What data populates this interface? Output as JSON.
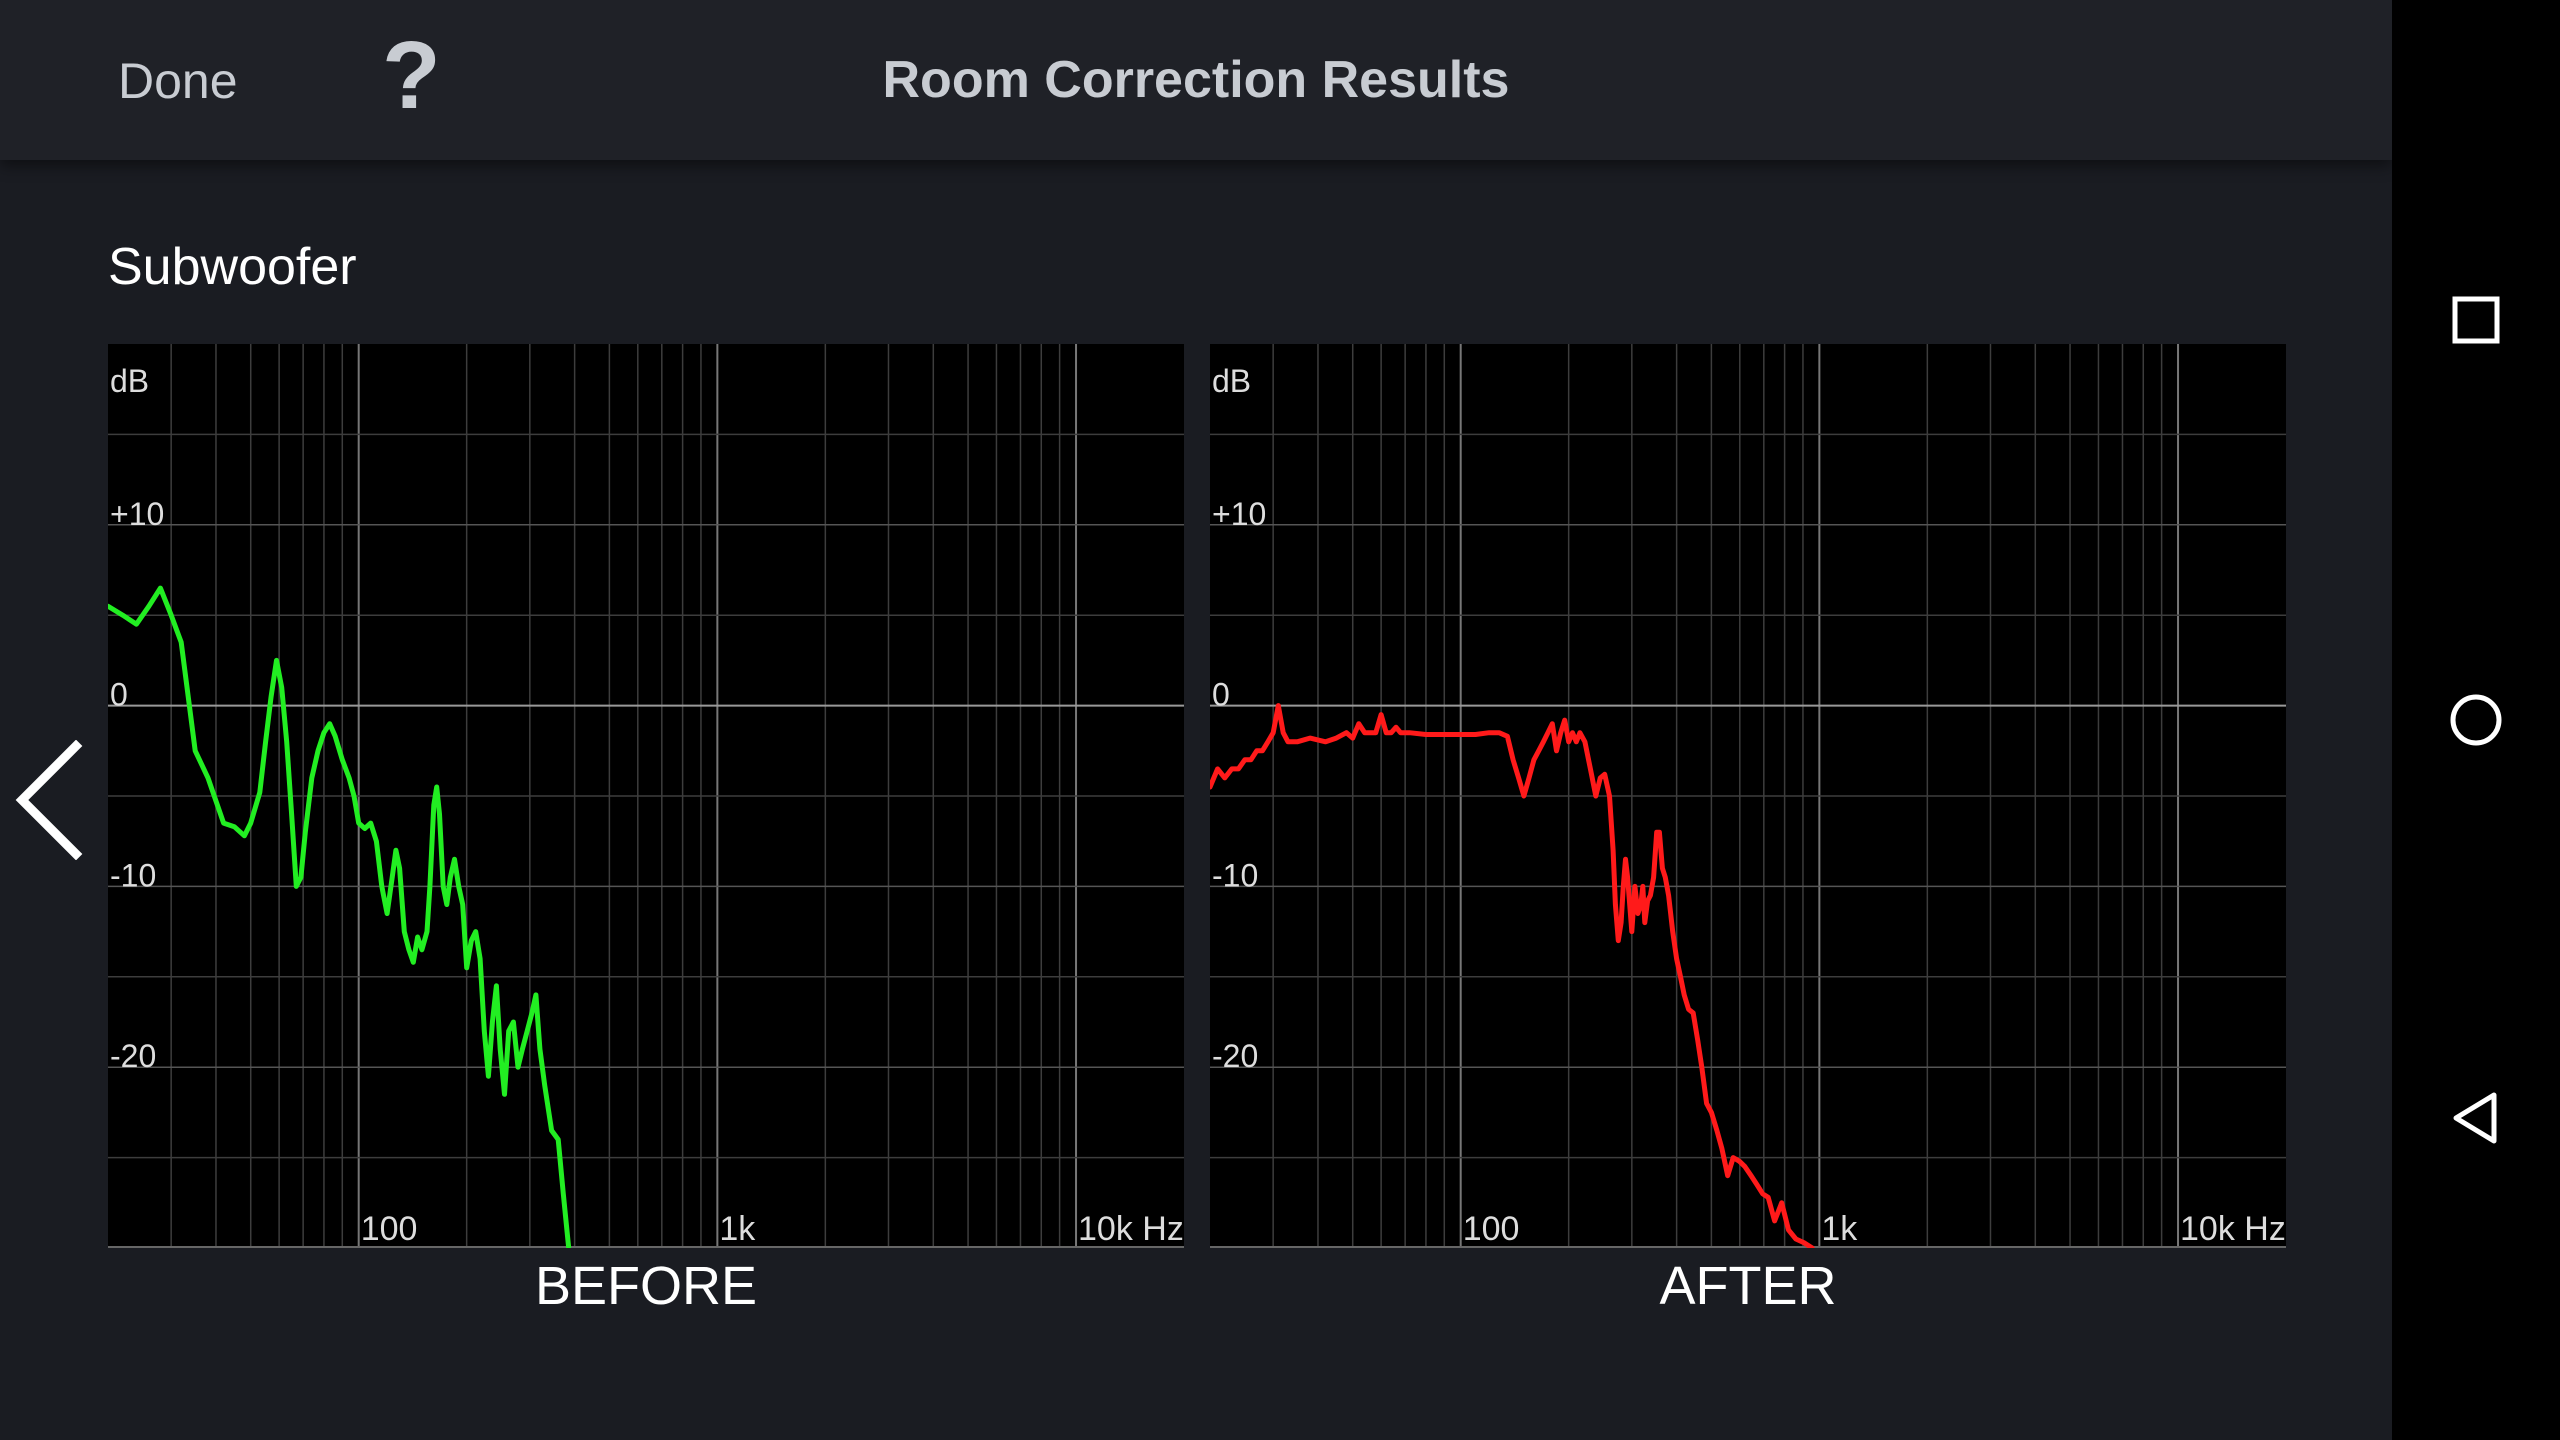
{
  "header": {
    "done_label": "Done",
    "help_label": "?",
    "title": "Room Correction Results"
  },
  "section_title": "Subwoofer",
  "icons": {
    "back": "chevron-left-icon",
    "recents": "square-icon",
    "home": "circle-icon",
    "nav_back": "triangle-back-icon"
  },
  "colors": {
    "before_line": "#22ee22",
    "after_line": "#ff1a1a",
    "background": "#1a1c22",
    "plot_bg": "#000000"
  },
  "chart_data": [
    {
      "type": "line",
      "caption": "BEFORE",
      "ylabel": "dB",
      "xlabel": "Hz",
      "x_scale": "log",
      "xlim": [
        20,
        20000
      ],
      "ylim": [
        -30,
        20
      ],
      "y_ticks": [
        {
          "value": 10,
          "label": "+10"
        },
        {
          "value": 0,
          "label": "0"
        },
        {
          "value": -10,
          "label": "-10"
        },
        {
          "value": -20,
          "label": "-20"
        }
      ],
      "x_ticks": [
        {
          "value": 100,
          "label": "100"
        },
        {
          "value": 1000,
          "label": "1k"
        },
        {
          "value": 10000,
          "label": "10k Hz"
        }
      ],
      "series": [
        {
          "color": "#22ee22",
          "points": [
            [
              20,
              5.5
            ],
            [
              22,
              5
            ],
            [
              24,
              4.5
            ],
            [
              26,
              5.5
            ],
            [
              28,
              6.5
            ],
            [
              30,
              5
            ],
            [
              32,
              3.5
            ],
            [
              35,
              -2.5
            ],
            [
              38,
              -4
            ],
            [
              42,
              -6.5
            ],
            [
              45,
              -6.7
            ],
            [
              48,
              -7.2
            ],
            [
              50,
              -6.5
            ],
            [
              53,
              -4.8
            ],
            [
              55,
              -2
            ],
            [
              57,
              0.5
            ],
            [
              59,
              2.5
            ],
            [
              61,
              1
            ],
            [
              63,
              -2
            ],
            [
              65,
              -6
            ],
            [
              67,
              -10
            ],
            [
              69,
              -9.5
            ],
            [
              71,
              -7
            ],
            [
              74,
              -4
            ],
            [
              77,
              -2.5
            ],
            [
              80,
              -1.5
            ],
            [
              83,
              -1
            ],
            [
              86,
              -1.7
            ],
            [
              90,
              -3
            ],
            [
              94,
              -4
            ],
            [
              97,
              -5
            ],
            [
              100,
              -6.5
            ],
            [
              104,
              -6.8
            ],
            [
              108,
              -6.5
            ],
            [
              112,
              -7.5
            ],
            [
              116,
              -10
            ],
            [
              120,
              -11.5
            ],
            [
              124,
              -9.5
            ],
            [
              127,
              -8
            ],
            [
              130,
              -9
            ],
            [
              134,
              -12.5
            ],
            [
              138,
              -13.5
            ],
            [
              142,
              -14.2
            ],
            [
              146,
              -12.8
            ],
            [
              150,
              -13.5
            ],
            [
              155,
              -12.5
            ],
            [
              158,
              -10
            ],
            [
              162,
              -5.5
            ],
            [
              165,
              -4.5
            ],
            [
              168,
              -6
            ],
            [
              172,
              -10
            ],
            [
              176,
              -11
            ],
            [
              180,
              -9.5
            ],
            [
              185,
              -8.5
            ],
            [
              190,
              -10
            ],
            [
              195,
              -11
            ],
            [
              200,
              -14.5
            ],
            [
              206,
              -13
            ],
            [
              212,
              -12.5
            ],
            [
              218,
              -14
            ],
            [
              224,
              -18
            ],
            [
              230,
              -20.5
            ],
            [
              236,
              -17.5
            ],
            [
              242,
              -15.5
            ],
            [
              248,
              -19
            ],
            [
              255,
              -21.5
            ],
            [
              262,
              -18
            ],
            [
              270,
              -17.5
            ],
            [
              278,
              -20
            ],
            [
              286,
              -19
            ],
            [
              295,
              -18
            ],
            [
              304,
              -17
            ],
            [
              312,
              -16
            ],
            [
              320,
              -19
            ],
            [
              330,
              -21
            ],
            [
              345,
              -23.5
            ],
            [
              360,
              -24
            ],
            [
              372,
              -27
            ],
            [
              385,
              -30
            ]
          ]
        }
      ]
    },
    {
      "type": "line",
      "caption": "AFTER",
      "ylabel": "dB",
      "xlabel": "Hz",
      "x_scale": "log",
      "xlim": [
        20,
        20000
      ],
      "ylim": [
        -30,
        20
      ],
      "y_ticks": [
        {
          "value": 10,
          "label": "+10"
        },
        {
          "value": 0,
          "label": "0"
        },
        {
          "value": -10,
          "label": "-10"
        },
        {
          "value": -20,
          "label": "-20"
        }
      ],
      "x_ticks": [
        {
          "value": 100,
          "label": "100"
        },
        {
          "value": 1000,
          "label": "1k"
        },
        {
          "value": 10000,
          "label": "10k Hz"
        }
      ],
      "series": [
        {
          "color": "#ff1a1a",
          "points": [
            [
              20,
              -4.5
            ],
            [
              21,
              -3.5
            ],
            [
              22,
              -4
            ],
            [
              23,
              -3.5
            ],
            [
              24,
              -3.5
            ],
            [
              25,
              -3
            ],
            [
              26,
              -3
            ],
            [
              27,
              -2.5
            ],
            [
              28,
              -2.5
            ],
            [
              29,
              -2
            ],
            [
              30,
              -1.5
            ],
            [
              31,
              0
            ],
            [
              32,
              -1.5
            ],
            [
              33,
              -2
            ],
            [
              35,
              -2
            ],
            [
              38,
              -1.8
            ],
            [
              42,
              -2
            ],
            [
              45,
              -1.8
            ],
            [
              48,
              -1.5
            ],
            [
              50,
              -1.8
            ],
            [
              52,
              -1
            ],
            [
              54,
              -1.5
            ],
            [
              56,
              -1.5
            ],
            [
              58,
              -1.5
            ],
            [
              60,
              -0.5
            ],
            [
              62,
              -1.5
            ],
            [
              64,
              -1.5
            ],
            [
              66,
              -1.2
            ],
            [
              68,
              -1.5
            ],
            [
              72,
              -1.5
            ],
            [
              80,
              -1.6
            ],
            [
              90,
              -1.6
            ],
            [
              100,
              -1.6
            ],
            [
              110,
              -1.6
            ],
            [
              120,
              -1.5
            ],
            [
              128,
              -1.5
            ],
            [
              135,
              -1.7
            ],
            [
              140,
              -3
            ],
            [
              145,
              -4
            ],
            [
              150,
              -5
            ],
            [
              155,
              -4
            ],
            [
              160,
              -3
            ],
            [
              165,
              -2.5
            ],
            [
              170,
              -2
            ],
            [
              175,
              -1.5
            ],
            [
              180,
              -1
            ],
            [
              185,
              -2.5
            ],
            [
              190,
              -1.5
            ],
            [
              195,
              -0.8
            ],
            [
              200,
              -2
            ],
            [
              205,
              -1.5
            ],
            [
              210,
              -2
            ],
            [
              215,
              -1.5
            ],
            [
              222,
              -2
            ],
            [
              230,
              -3.5
            ],
            [
              238,
              -5
            ],
            [
              245,
              -4
            ],
            [
              252,
              -3.8
            ],
            [
              260,
              -5
            ],
            [
              266,
              -8
            ],
            [
              270,
              -11
            ],
            [
              275,
              -13
            ],
            [
              280,
              -12
            ],
            [
              284,
              -10
            ],
            [
              288,
              -8.5
            ],
            [
              292,
              -9.5
            ],
            [
              296,
              -11
            ],
            [
              300,
              -12.5
            ],
            [
              306,
              -10
            ],
            [
              312,
              -11.5
            ],
            [
              318,
              -11
            ],
            [
              322,
              -10
            ],
            [
              326,
              -12
            ],
            [
              332,
              -10.8
            ],
            [
              338,
              -10.5
            ],
            [
              345,
              -9.5
            ],
            [
              352,
              -7
            ],
            [
              358,
              -7
            ],
            [
              365,
              -9
            ],
            [
              372,
              -9.5
            ],
            [
              380,
              -10.5
            ],
            [
              390,
              -12.5
            ],
            [
              400,
              -14
            ],
            [
              410,
              -15
            ],
            [
              420,
              -16
            ],
            [
              432,
              -16.8
            ],
            [
              445,
              -17
            ],
            [
              458,
              -18.5
            ],
            [
              470,
              -20
            ],
            [
              485,
              -22
            ],
            [
              500,
              -22.5
            ],
            [
              518,
              -23.5
            ],
            [
              535,
              -24.5
            ],
            [
              555,
              -26
            ],
            [
              575,
              -25
            ],
            [
              598,
              -25.2
            ],
            [
              620,
              -25.5
            ],
            [
              645,
              -26
            ],
            [
              670,
              -26.5
            ],
            [
              695,
              -27
            ],
            [
              720,
              -27.2
            ],
            [
              750,
              -28.5
            ],
            [
              785,
              -27.5
            ],
            [
              820,
              -29
            ],
            [
              860,
              -29.5
            ],
            [
              905,
              -29.7
            ],
            [
              955,
              -30
            ]
          ]
        }
      ]
    }
  ]
}
